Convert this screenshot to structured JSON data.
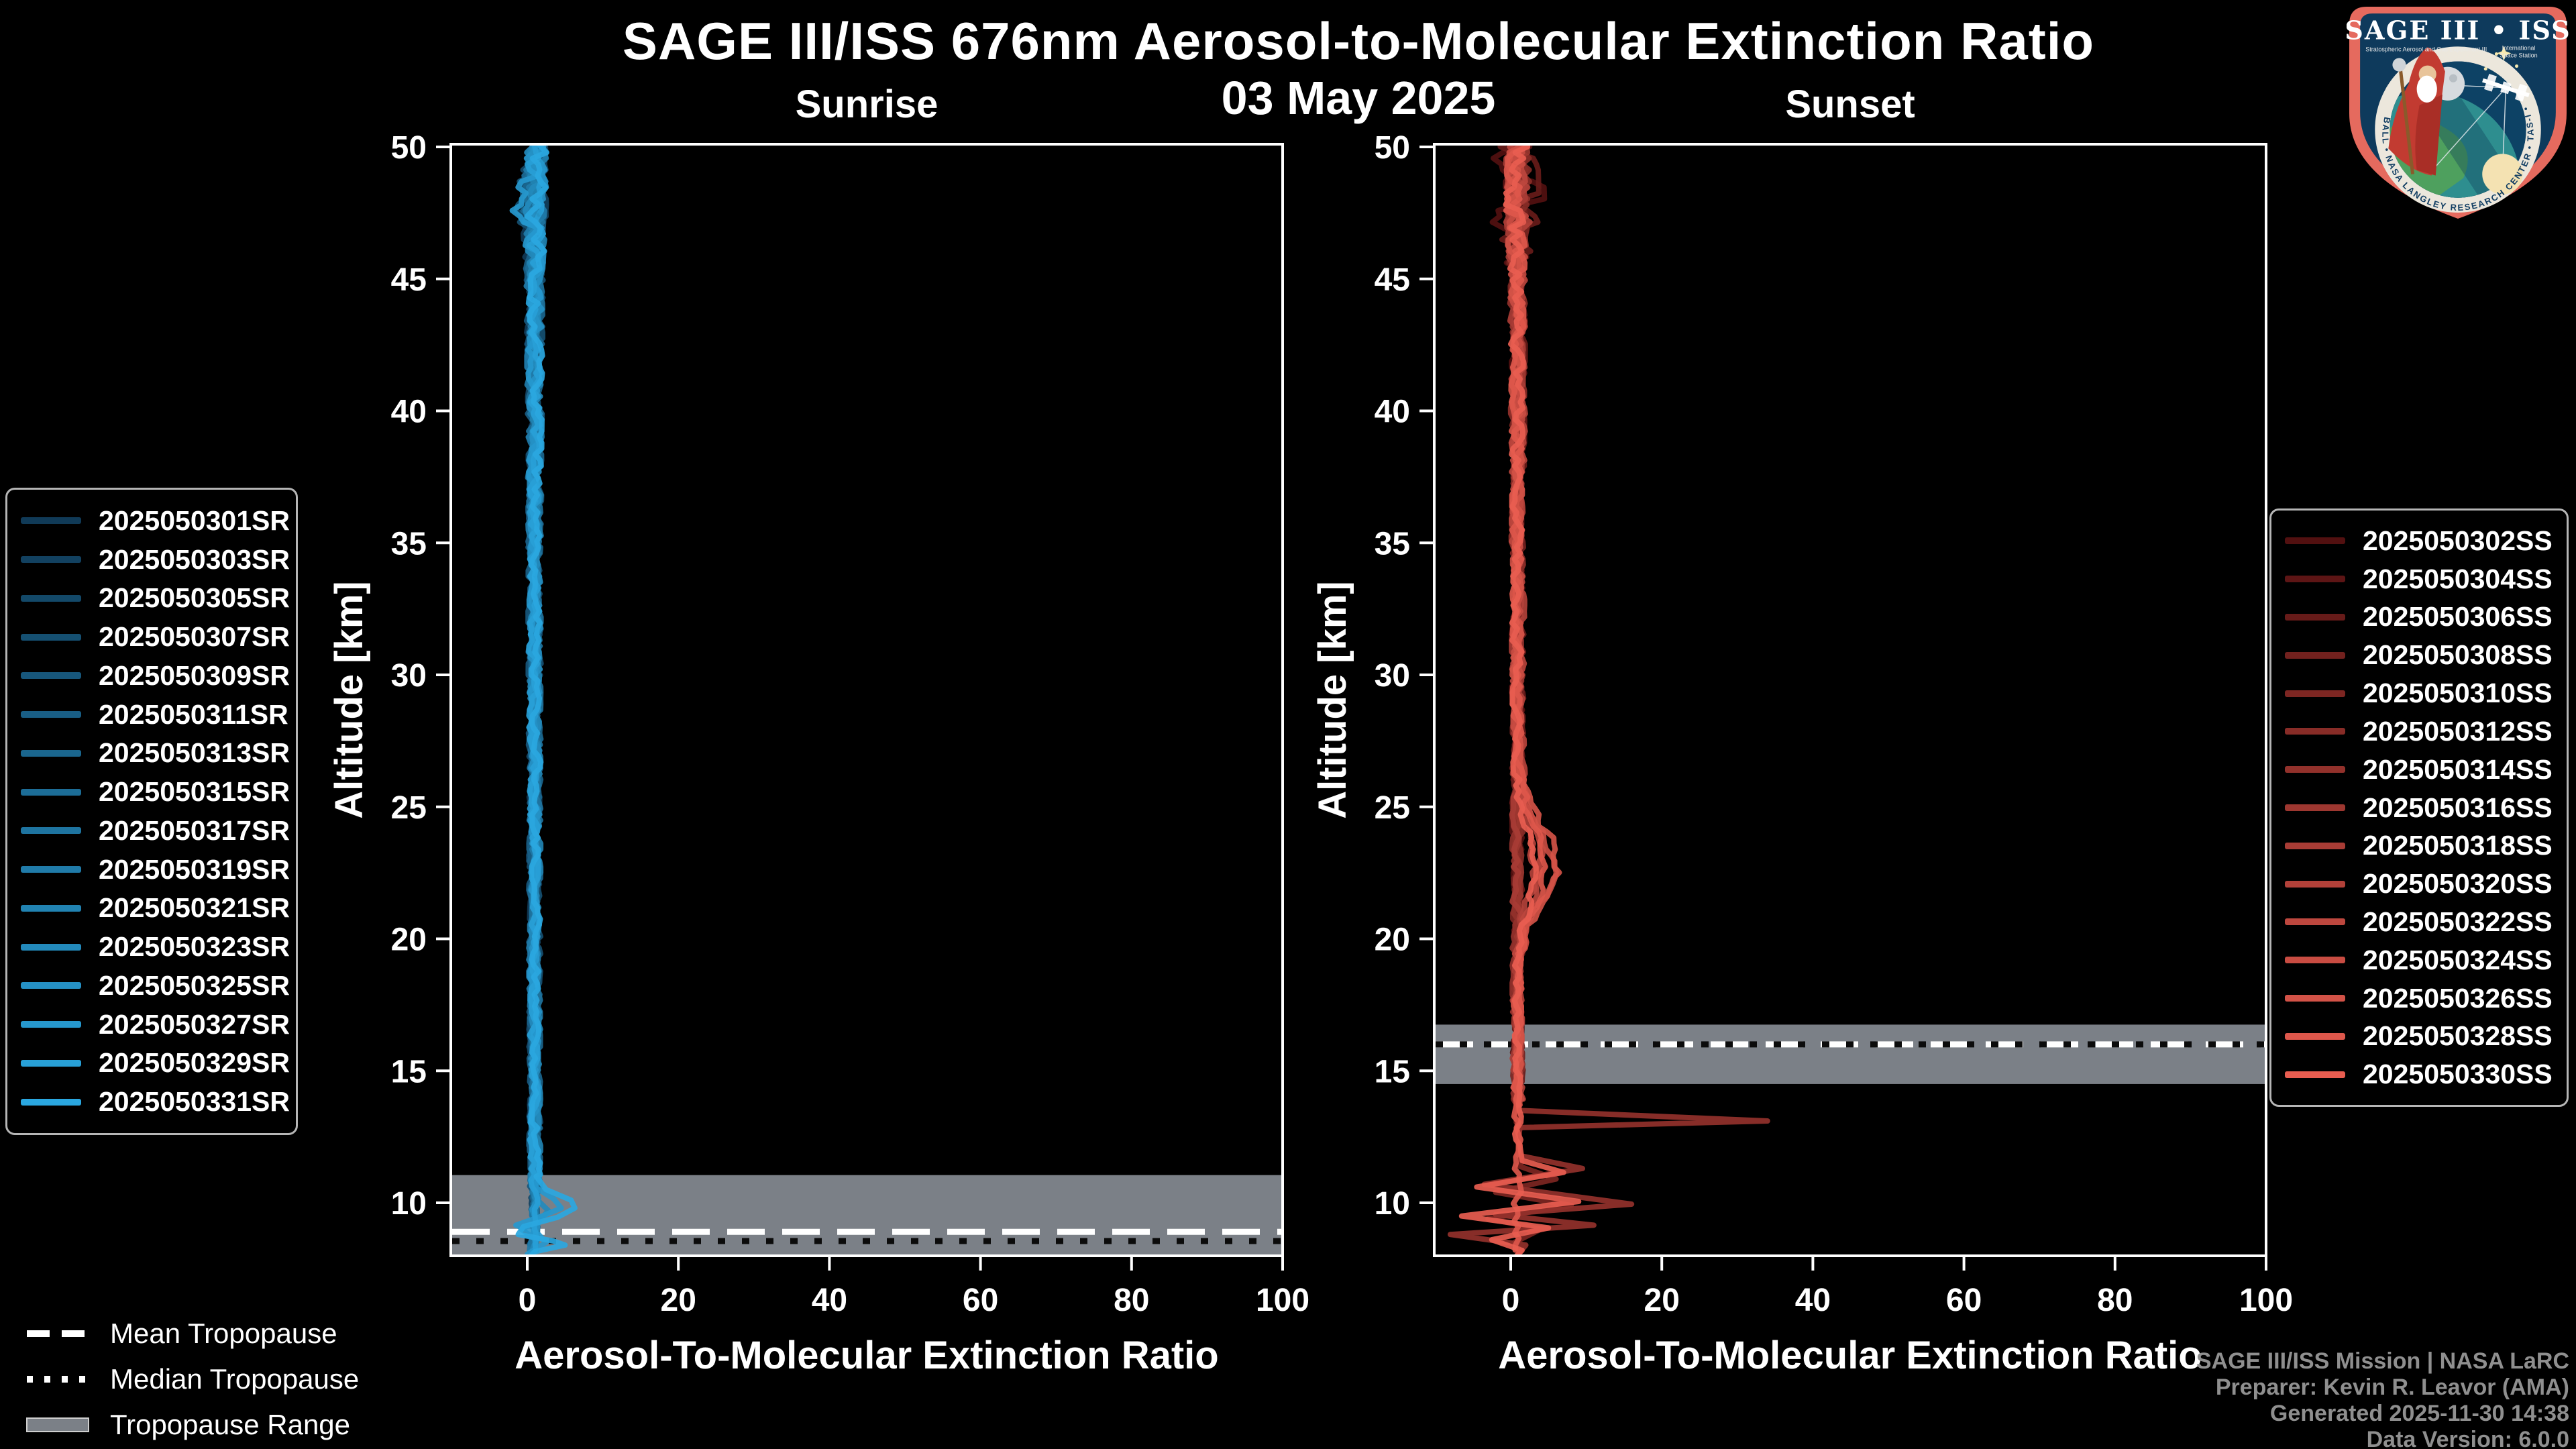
{
  "header": {
    "title": "SAGE III/ISS 676nm Aerosol-to-Molecular Extinction Ratio",
    "date": "03 May 2025"
  },
  "attribution": {
    "line1": "SAGE III/ISS Mission | NASA LaRC",
    "line2": "Preparer: Kevin R. Leavor (AMA)",
    "line3": "Generated 2025-11-30 14:38",
    "line4": "Data Version: 6.0.0"
  },
  "overlay_legend": {
    "mean": "Mean Tropopause",
    "median": "Median Tropopause",
    "range": "Tropopause Range"
  },
  "logo": {
    "title": "SAGE III • ISS",
    "sub_left": "Stratospheric Aerosol and Gas Experiment III",
    "sub_right_1": "International",
    "sub_right_2": "Space Station",
    "ring_text": "BALL • NASA LANGLEY RESEARCH CENTER • TAS-I • ESA"
  },
  "chart_data": {
    "type": "line",
    "title": "SAGE III/ISS 676nm Aerosol-to-Molecular Extinction Ratio",
    "subtitle": "03 May 2025",
    "xlabel": "Aerosol-To-Molecular Extinction Ratio",
    "ylabel": "Altitude [km]",
    "xlim": [
      -10,
      100
    ],
    "ylim": [
      8,
      50
    ],
    "xticks": [
      0,
      20,
      40,
      60,
      80,
      100
    ],
    "yticks": [
      10,
      15,
      20,
      25,
      30,
      35,
      40,
      45,
      50
    ],
    "grid": false,
    "background_color": "#000000",
    "tropopause_band_color": "#7b8087",
    "typical_profile": "all profiles oscillate about extinction ratio 0.5-2 from 50 km down to the tropopause",
    "panels": [
      {
        "id": "sunrise",
        "title": "Sunrise",
        "line_color_range": [
          "#103a57",
          "#2aa7e0"
        ],
        "tropopause": {
          "mean_km": 8.9,
          "median_km": 8.55,
          "range_km": [
            8.0,
            11.05
          ]
        },
        "series": [
          {
            "label": "2025050301SR",
            "color": "#103a57",
            "seed": 101,
            "end_alt": 8.05
          },
          {
            "label": "2025050303SR",
            "color": "#124160",
            "seed": 102,
            "end_alt": 8.2
          },
          {
            "label": "2025050305SR",
            "color": "#134969",
            "seed": 103,
            "end_alt": 8.05
          },
          {
            "label": "2025050307SR",
            "color": "#155072",
            "seed": 104,
            "end_alt": 8.3,
            "notch": {
              "alt": 47.6,
              "depth": -3.2,
              "width": 1.3
            }
          },
          {
            "label": "2025050309SR",
            "color": "#17577c",
            "seed": 105,
            "end_alt": 8.1
          },
          {
            "label": "2025050311SR",
            "color": "#195e85",
            "seed": 106,
            "end_alt": 8.25
          },
          {
            "label": "2025050313SR",
            "color": "#1a668e",
            "seed": 107,
            "end_alt": 8.0
          },
          {
            "label": "2025050315SR",
            "color": "#1c6d97",
            "seed": 108,
            "end_alt": 8.15
          },
          {
            "label": "2025050317SR",
            "color": "#1e74a0",
            "seed": 109,
            "end_alt": 8.3
          },
          {
            "label": "2025050319SR",
            "color": "#207ba9",
            "seed": 110,
            "end_alt": 8.05
          },
          {
            "label": "2025050321SR",
            "color": "#2183b2",
            "seed": 111,
            "end_alt": 8.2
          },
          {
            "label": "2025050323SR",
            "color": "#238abc",
            "seed": 112,
            "end_alt": 8.1,
            "tail_vertices": [
              [
                1.0,
                10.2
              ],
              [
                2.8,
                9.7
              ],
              [
                1.5,
                9.3
              ],
              [
                -0.8,
                9.0
              ],
              [
                1.2,
                8.6
              ],
              [
                0.5,
                8.1
              ]
            ]
          },
          {
            "label": "2025050325SR",
            "color": "#2591c5",
            "seed": 113,
            "end_alt": 8.1
          },
          {
            "label": "2025050327SR",
            "color": "#2698ce",
            "seed": 114,
            "end_alt": 8.0,
            "notch": {
              "alt": 48.0,
              "depth": -2.4,
              "width": 1.1
            },
            "tail_vertices": [
              [
                1.0,
                10.6
              ],
              [
                3.5,
                10.15
              ],
              [
                4.5,
                9.8
              ],
              [
                2.0,
                9.5
              ],
              [
                -1.5,
                9.15
              ],
              [
                1.5,
                8.8
              ],
              [
                2.5,
                8.5
              ],
              [
                0.0,
                8.05
              ]
            ]
          },
          {
            "label": "2025050329SR",
            "color": "#28a0d7",
            "seed": 115,
            "end_alt": 8.0
          },
          {
            "label": "2025050331SR",
            "color": "#2aa7e0",
            "seed": 116,
            "end_alt": 8.0,
            "tail_vertices": [
              [
                1.2,
                11.0
              ],
              [
                2.5,
                10.5
              ],
              [
                5.8,
                10.1
              ],
              [
                6.3,
                9.8
              ],
              [
                4.0,
                9.45
              ],
              [
                -0.5,
                9.1
              ],
              [
                -1.2,
                8.8
              ],
              [
                3.5,
                8.55
              ],
              [
                5.0,
                8.4
              ],
              [
                1.0,
                8.15
              ],
              [
                0.5,
                8.0
              ]
            ]
          }
        ]
      },
      {
        "id": "sunset",
        "title": "Sunset",
        "line_color_range": [
          "#521010",
          "#e85d50"
        ],
        "tropopause": {
          "mean_km": 16.0,
          "median_km": 16.0,
          "range_km": [
            14.5,
            16.75
          ]
        },
        "spike_feature": {
          "altitude_km": 13.1,
          "max_ratio": 34
        },
        "low_altitude_zigzag": {
          "max_ratio": 16,
          "min_ratio": -8,
          "altitude_range_km": [
            8.5,
            11.5
          ]
        },
        "series": [
          {
            "label": "2025050302SS",
            "color": "#521010",
            "seed": 201,
            "end_alt": 14.2,
            "top_spread": 2.4
          },
          {
            "label": "2025050304SS",
            "color": "#5d1515",
            "seed": 202,
            "end_alt": 15.1
          },
          {
            "label": "2025050306SS",
            "color": "#671b19",
            "seed": 203,
            "end_alt": 14.4,
            "top_spread": 1.8
          },
          {
            "label": "2025050308SS",
            "color": "#72211e",
            "seed": 204,
            "end_alt": 14.8
          },
          {
            "label": "2025050310SS",
            "color": "#7d2622",
            "seed": 205,
            "end_alt": 8.1,
            "tail_vertices": [
              [
                1.0,
                11.4
              ],
              [
                6.0,
                10.9
              ],
              [
                -2.0,
                10.4
              ],
              [
                8.0,
                9.9
              ],
              [
                -3.0,
                9.4
              ],
              [
                4.0,
                9.0
              ],
              [
                0.5,
                8.5
              ],
              [
                1.0,
                8.1
              ]
            ]
          },
          {
            "label": "2025050312SS",
            "color": "#882c27",
            "seed": 206,
            "end_alt": 14.9
          },
          {
            "label": "2025050314SS",
            "color": "#92312b",
            "seed": 207,
            "end_alt": 8.05,
            "tail_vertices": [
              [
                1.3,
                13.9
              ],
              [
                1.0,
                13.5
              ],
              [
                34.0,
                13.1
              ],
              [
                1.2,
                12.85
              ],
              [
                1.0,
                12.2
              ],
              [
                1.0,
                11.8
              ],
              [
                9.5,
                11.3
              ],
              [
                -3.5,
                10.7
              ],
              [
                16.0,
                9.95
              ],
              [
                -2.0,
                9.55
              ],
              [
                11.0,
                9.15
              ],
              [
                -8.0,
                8.8
              ],
              [
                2.0,
                8.4
              ],
              [
                1.0,
                8.05
              ]
            ]
          },
          {
            "label": "2025050316SS",
            "color": "#9d3730",
            "seed": 208,
            "end_alt": 14.3
          },
          {
            "label": "2025050318SS",
            "color": "#a83c35",
            "seed": 209,
            "end_alt": 14.6
          },
          {
            "label": "2025050320SS",
            "color": "#b24139",
            "seed": 210,
            "end_alt": 13.9,
            "bulge": 2.0
          },
          {
            "label": "2025050322SS",
            "color": "#bd473e",
            "seed": 211,
            "end_alt": 13.6,
            "bulge": 3.2
          },
          {
            "label": "2025050324SS",
            "color": "#c84c42",
            "seed": 212,
            "end_alt": 13.8,
            "bulge": 4.6
          },
          {
            "label": "2025050326SS",
            "color": "#d25247",
            "seed": 213,
            "end_alt": 13.5,
            "bulge": 5.5
          },
          {
            "label": "2025050328SS",
            "color": "#dd574b",
            "seed": 214,
            "end_alt": 8.0,
            "bulge": 3.8
          },
          {
            "label": "2025050330SS",
            "color": "#e85d50",
            "seed": 215,
            "end_alt": 8.0,
            "bulge": 2.5,
            "tail_vertices": [
              [
                1.2,
                12.2
              ],
              [
                1.5,
                11.6
              ],
              [
                7.0,
                11.15
              ],
              [
                -4.5,
                10.6
              ],
              [
                9.0,
                10.05
              ],
              [
                -6.5,
                9.5
              ],
              [
                5.0,
                9.05
              ],
              [
                -2.5,
                8.6
              ],
              [
                1.5,
                8.2
              ],
              [
                0.8,
                8.0
              ]
            ]
          }
        ]
      }
    ]
  }
}
